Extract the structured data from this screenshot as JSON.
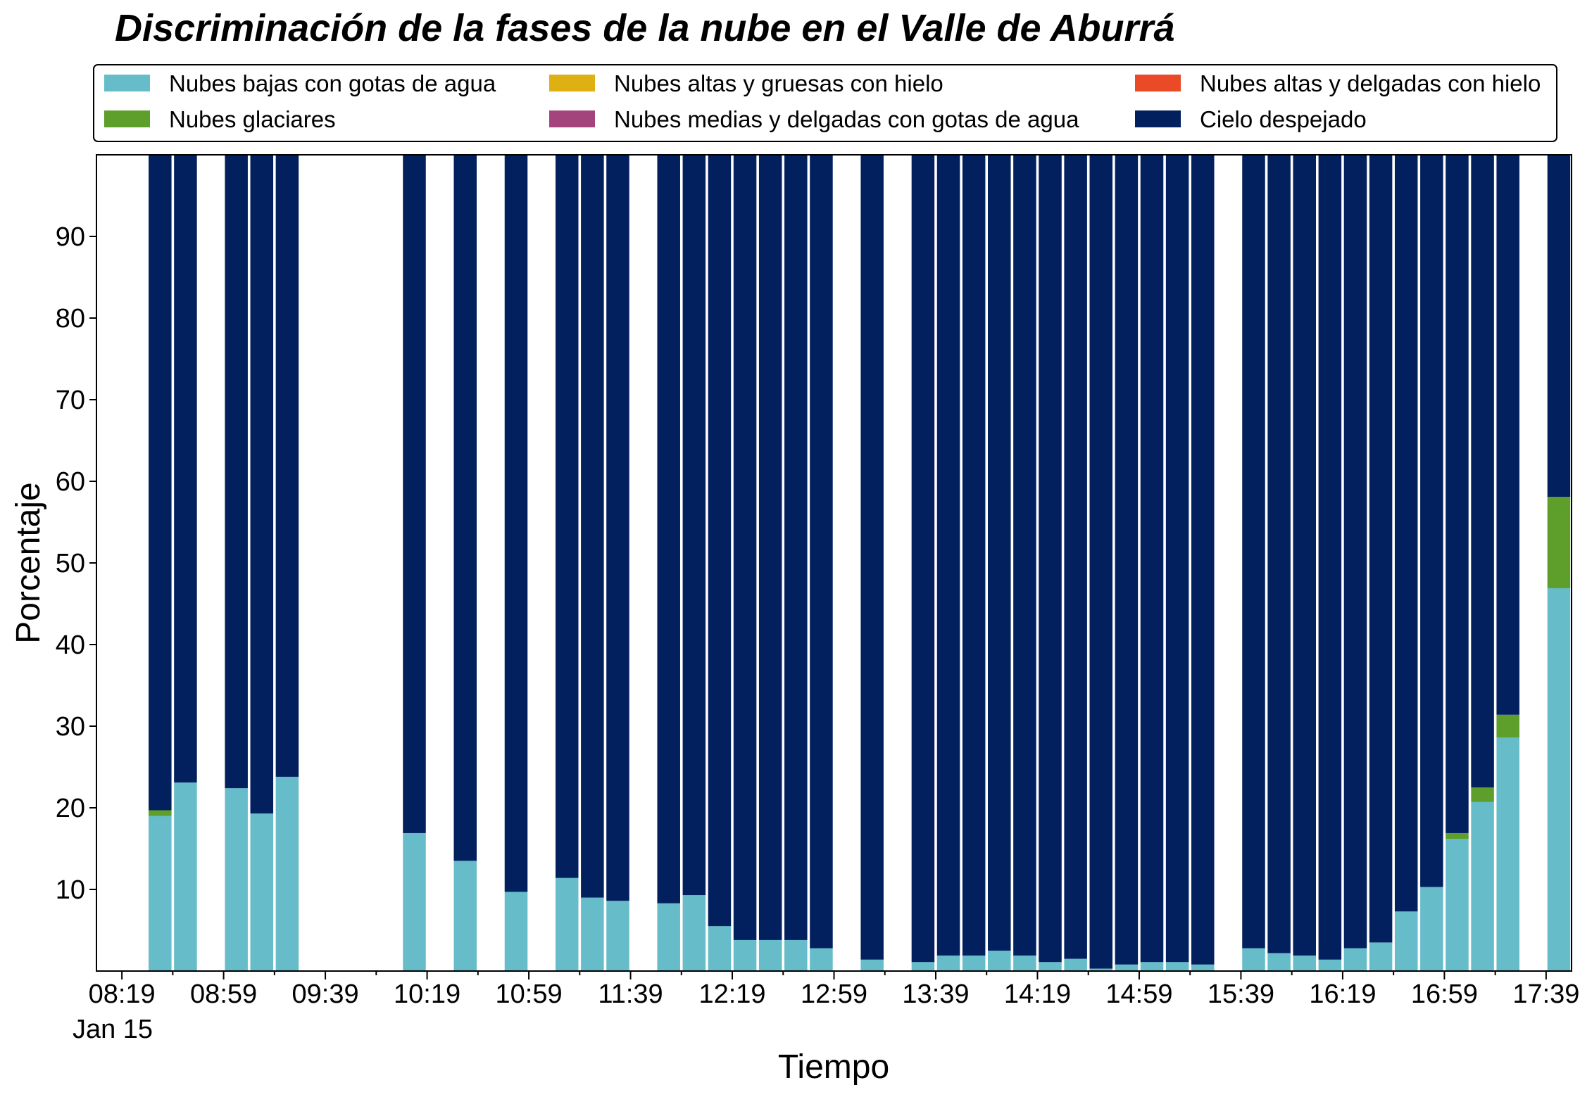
{
  "chart_data": {
    "type": "bar",
    "stacked": true,
    "title": "Discriminación de la fases de la nube en el Valle de Aburrá",
    "xlabel": "Tiempo",
    "ylabel": "Porcentaje",
    "ylim": [
      0,
      100
    ],
    "yticks": [
      10,
      20,
      30,
      40,
      50,
      60,
      70,
      80,
      90
    ],
    "xlim_minutes_after_0819": [
      -10,
      570
    ],
    "major_tick_labels": [
      "08:19",
      "08:59",
      "09:39",
      "10:19",
      "10:59",
      "11:39",
      "12:19",
      "12:59",
      "13:39",
      "14:19",
      "14:59",
      "15:39",
      "16:19",
      "16:59",
      "17:39"
    ],
    "date_label": "Jan 15",
    "legend_position": "top",
    "legend_columns": 3,
    "grid": false,
    "times": [
      "08:34",
      "08:44",
      "09:04",
      "09:14",
      "09:24",
      "10:14",
      "10:34",
      "10:54",
      "11:14",
      "11:24",
      "11:34",
      "11:54",
      "12:04",
      "12:14",
      "12:24",
      "12:34",
      "12:44",
      "12:54",
      "13:14",
      "13:34",
      "13:44",
      "13:54",
      "14:04",
      "14:14",
      "14:24",
      "14:34",
      "14:44",
      "14:54",
      "15:04",
      "15:14",
      "15:24",
      "15:44",
      "15:54",
      "16:04",
      "16:14",
      "16:24",
      "16:34",
      "16:44",
      "16:54",
      "17:04",
      "17:14",
      "17:24",
      "17:44"
    ],
    "series": [
      {
        "name": "Nubes bajas con gotas de agua",
        "color": "#66bdc9",
        "values": [
          19,
          23.1,
          22.4,
          19.3,
          23.8,
          16.9,
          13.5,
          9.7,
          11.4,
          9,
          8.6,
          8.3,
          9.3,
          5.5,
          3.8,
          3.8,
          3.8,
          2.8,
          1.4,
          1.1,
          1.9,
          1.9,
          2.5,
          1.9,
          1.1,
          1.5,
          0.3,
          0.8,
          1.1,
          1.1,
          0.8,
          2.8,
          2.2,
          1.9,
          1.4,
          2.8,
          3.5,
          7.3,
          10.3,
          16.2,
          20.7,
          28.6,
          46.9
        ]
      },
      {
        "name": "Nubes glaciares",
        "color": "#5e9e2b",
        "values": [
          0.7,
          0,
          0,
          0,
          0,
          0,
          0,
          0,
          0,
          0,
          0,
          0,
          0,
          0,
          0,
          0,
          0,
          0,
          0,
          0,
          0,
          0,
          0,
          0,
          0,
          0,
          0,
          0,
          0,
          0,
          0,
          0,
          0,
          0,
          0,
          0,
          0,
          0,
          0,
          0.7,
          1.8,
          2.8,
          11.2
        ]
      },
      {
        "name": "Nubes altas y gruesas con hielo",
        "color": "#dfb014",
        "values": [
          0,
          0,
          0,
          0,
          0,
          0,
          0,
          0,
          0,
          0,
          0,
          0,
          0,
          0,
          0,
          0,
          0,
          0,
          0,
          0,
          0,
          0,
          0,
          0,
          0,
          0,
          0,
          0,
          0,
          0,
          0,
          0,
          0,
          0,
          0,
          0,
          0,
          0,
          0,
          0,
          0,
          0,
          0
        ]
      },
      {
        "name": "Nubes medias y delgadas con gotas de agua",
        "color": "#a3457c",
        "values": [
          0,
          0,
          0,
          0,
          0,
          0,
          0,
          0,
          0,
          0,
          0,
          0,
          0,
          0,
          0,
          0,
          0,
          0,
          0,
          0,
          0,
          0,
          0,
          0,
          0,
          0,
          0,
          0,
          0,
          0,
          0,
          0,
          0,
          0,
          0,
          0,
          0,
          0,
          0,
          0,
          0,
          0,
          0
        ]
      },
      {
        "name": "Nubes altas y delgadas con hielo",
        "color": "#ea4b26",
        "values": [
          0,
          0,
          0,
          0,
          0,
          0,
          0,
          0,
          0,
          0,
          0,
          0,
          0,
          0,
          0,
          0,
          0,
          0,
          0,
          0,
          0,
          0,
          0,
          0,
          0,
          0,
          0,
          0,
          0,
          0,
          0,
          0,
          0,
          0,
          0,
          0,
          0,
          0,
          0,
          0,
          0,
          0,
          0
        ]
      },
      {
        "name": "Cielo despejado",
        "color": "#03205e",
        "values": [
          80.3,
          76.9,
          77.6,
          80.7,
          76.2,
          83.1,
          86.5,
          90.3,
          88.6,
          91,
          91.4,
          91.7,
          90.7,
          94.5,
          96.2,
          96.2,
          96.2,
          97.2,
          98.6,
          98.9,
          98.1,
          98.1,
          97.5,
          98.1,
          98.9,
          98.5,
          99.7,
          99.2,
          98.9,
          98.9,
          99.2,
          97.2,
          97.8,
          98.1,
          98.6,
          97.2,
          96.5,
          92.7,
          89.7,
          83.1,
          77.5,
          68.6,
          41.9
        ]
      }
    ]
  }
}
